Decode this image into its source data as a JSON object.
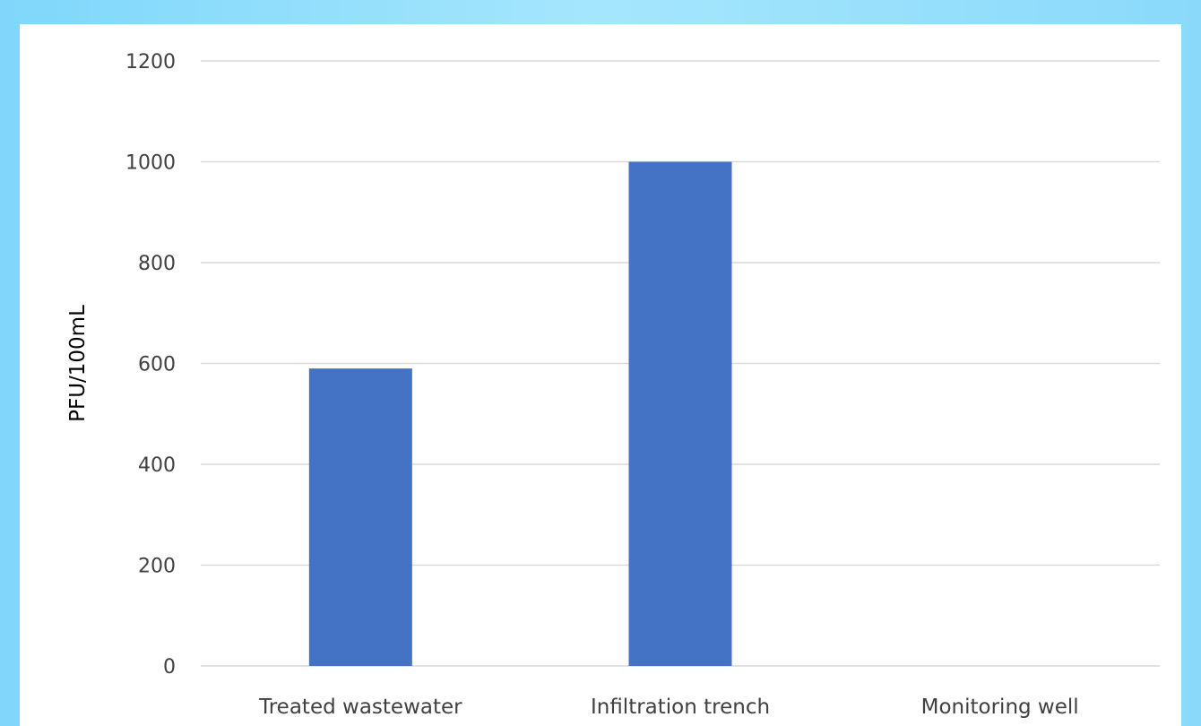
{
  "chart_data": {
    "type": "bar",
    "title": "",
    "xlabel": "",
    "ylabel": "PFU/100mL",
    "categories": [
      "Treated wastewater",
      "Infiltration trench",
      "Monitoring well"
    ],
    "values": [
      590,
      1000,
      0
    ],
    "ylim": [
      0,
      1200
    ],
    "yticks": [
      0,
      200,
      400,
      600,
      800,
      1000,
      1200
    ],
    "grid": true,
    "legend": "none",
    "colors": {
      "bar": "#4472c4",
      "gridline": "#d9d9d9",
      "text": "#404040",
      "frame_background": "#ffffff",
      "page_background": "#9fe3fc"
    }
  }
}
